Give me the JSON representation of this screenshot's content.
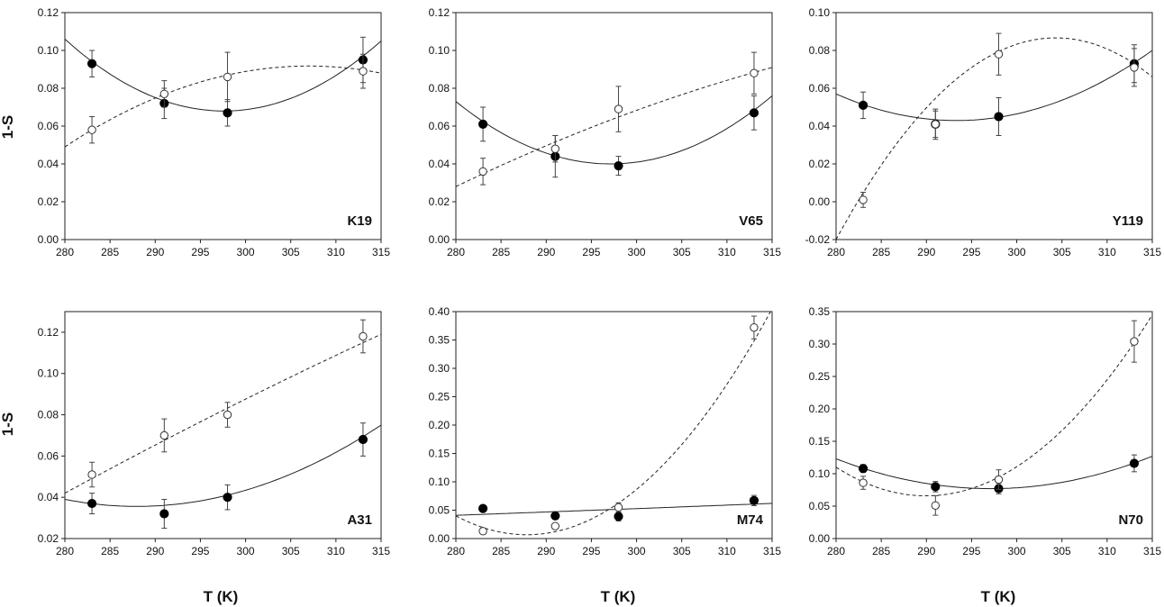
{
  "figure": {
    "ylabel": "1-S",
    "xlabel": "T (K)"
  },
  "chart_data": [
    {
      "type": "scatter",
      "panel_label": "K19",
      "xlim": [
        280,
        315
      ],
      "ylim": [
        0,
        0.12
      ],
      "xticks": [
        "280",
        "285",
        "290",
        "295",
        "300",
        "305",
        "310",
        "315"
      ],
      "yticks": [
        "0.00",
        "0.02",
        "0.04",
        "0.06",
        "0.08",
        "0.10",
        "0.12"
      ],
      "series": [
        {
          "marker": "filled",
          "x": [
            283,
            291,
            298,
            313
          ],
          "y": [
            0.093,
            0.072,
            0.067,
            0.095
          ],
          "err": [
            0.007,
            0.008,
            0.007,
            0.012
          ],
          "fit": {
            "style": "solid",
            "x": [
              280,
              298,
              315
            ],
            "y": [
              0.106,
              0.068,
              0.105
            ]
          }
        },
        {
          "marker": "open",
          "x": [
            283,
            291,
            298,
            313
          ],
          "y": [
            0.058,
            0.077,
            0.086,
            0.089
          ],
          "err": [
            0.007,
            0.007,
            0.013,
            0.009
          ],
          "fit": {
            "style": "dashed",
            "x": [
              280,
              298,
              315
            ],
            "y": [
              0.049,
              0.087,
              0.088
            ]
          }
        }
      ]
    },
    {
      "type": "scatter",
      "panel_label": "V65",
      "xlim": [
        280,
        315
      ],
      "ylim": [
        0,
        0.12
      ],
      "xticks": [
        "280",
        "285",
        "290",
        "295",
        "300",
        "305",
        "310",
        "315"
      ],
      "yticks": [
        "0.00",
        "0.02",
        "0.04",
        "0.06",
        "0.08",
        "0.10",
        "0.12"
      ],
      "series": [
        {
          "marker": "filled",
          "x": [
            283,
            291,
            298,
            313
          ],
          "y": [
            0.061,
            0.044,
            0.039,
            0.067
          ],
          "err": [
            0.009,
            0.011,
            0.005,
            0.009
          ],
          "fit": {
            "style": "solid",
            "x": [
              280,
              297,
              315
            ],
            "y": [
              0.073,
              0.04,
              0.076
            ]
          }
        },
        {
          "marker": "open",
          "x": [
            283,
            291,
            298,
            313
          ],
          "y": [
            0.036,
            0.048,
            0.069,
            0.088
          ],
          "err": [
            0.007,
            0.007,
            0.012,
            0.011
          ],
          "fit": {
            "style": "dashed",
            "x": [
              280,
              297,
              315
            ],
            "y": [
              0.028,
              0.063,
              0.091
            ]
          }
        }
      ]
    },
    {
      "type": "scatter",
      "panel_label": "Y119",
      "xlim": [
        280,
        315
      ],
      "ylim": [
        -0.02,
        0.1
      ],
      "xticks": [
        "280",
        "285",
        "290",
        "295",
        "300",
        "305",
        "310",
        "315"
      ],
      "yticks": [
        "-0.02",
        "0.00",
        "0.02",
        "0.04",
        "0.06",
        "0.08",
        "0.10"
      ],
      "series": [
        {
          "marker": "filled",
          "x": [
            283,
            291,
            298,
            313
          ],
          "y": [
            0.051,
            0.041,
            0.045,
            0.073
          ],
          "err": [
            0.007,
            0.007,
            0.01,
            0.01
          ],
          "fit": {
            "style": "solid",
            "x": [
              280,
              297,
              315
            ],
            "y": [
              0.057,
              0.044,
              0.08
            ]
          }
        },
        {
          "marker": "open",
          "x": [
            283,
            291,
            298,
            313
          ],
          "y": [
            0.001,
            0.041,
            0.078,
            0.071
          ],
          "err": [
            0.004,
            0.008,
            0.011,
            0.01
          ],
          "fit": {
            "style": "dashed",
            "x": [
              280,
              297,
              315
            ],
            "y": [
              -0.02,
              0.077,
              0.066
            ]
          }
        }
      ]
    },
    {
      "type": "scatter",
      "panel_label": "A31",
      "xlim": [
        280,
        315
      ],
      "ylim": [
        0.02,
        0.13
      ],
      "xticks": [
        "280",
        "285",
        "290",
        "295",
        "300",
        "305",
        "310",
        "315"
      ],
      "yticks": [
        "0.02",
        "0.04",
        "0.06",
        "0.08",
        "0.10",
        "0.12"
      ],
      "series": [
        {
          "marker": "filled",
          "x": [
            283,
            291,
            298,
            313
          ],
          "y": [
            0.037,
            0.032,
            0.04,
            0.068
          ],
          "err": [
            0.005,
            0.007,
            0.006,
            0.008
          ],
          "fit": {
            "style": "solid",
            "x": [
              280,
              297,
              315
            ],
            "y": [
              0.039,
              0.04,
              0.075
            ]
          }
        },
        {
          "marker": "open",
          "x": [
            283,
            291,
            298,
            313
          ],
          "y": [
            0.051,
            0.07,
            0.08,
            0.118
          ],
          "err": [
            0.006,
            0.008,
            0.006,
            0.008
          ],
          "fit": {
            "style": "dashed",
            "x": [
              280,
              297,
              315
            ],
            "y": [
              0.042,
              0.081,
              0.119
            ]
          }
        }
      ]
    },
    {
      "type": "scatter",
      "panel_label": "M74",
      "xlim": [
        280,
        315
      ],
      "ylim": [
        0,
        0.4
      ],
      "xticks": [
        "280",
        "285",
        "290",
        "295",
        "300",
        "305",
        "310",
        "315"
      ],
      "yticks": [
        "0.00",
        "0.05",
        "0.10",
        "0.15",
        "0.20",
        "0.25",
        "0.30",
        "0.35",
        "0.40"
      ],
      "series": [
        {
          "marker": "filled",
          "x": [
            283,
            291,
            298,
            313
          ],
          "y": [
            0.053,
            0.04,
            0.039,
            0.067
          ],
          "err": [
            0.005,
            0.006,
            0.008,
            0.009
          ],
          "fit": {
            "style": "solid",
            "x": [
              280,
              297,
              315
            ],
            "y": [
              0.041,
              0.051,
              0.062
            ]
          }
        },
        {
          "marker": "open",
          "x": [
            283,
            291,
            298,
            313
          ],
          "y": [
            0.013,
            0.022,
            0.055,
            0.372
          ],
          "err": [
            0.004,
            0.005,
            0.008,
            0.02
          ],
          "fit": {
            "style": "dashed",
            "x": [
              280,
              297,
              315
            ],
            "y": [
              0.04,
              0.052,
              0.405
            ]
          }
        }
      ]
    },
    {
      "type": "scatter",
      "panel_label": "N70",
      "xlim": [
        280,
        315
      ],
      "ylim": [
        0,
        0.35
      ],
      "xticks": [
        "280",
        "285",
        "290",
        "295",
        "300",
        "305",
        "310",
        "315"
      ],
      "yticks": [
        "0.00",
        "0.05",
        "0.10",
        "0.15",
        "0.20",
        "0.25",
        "0.30",
        "0.35"
      ],
      "series": [
        {
          "marker": "filled",
          "x": [
            283,
            291,
            298,
            313
          ],
          "y": [
            0.108,
            0.08,
            0.077,
            0.116
          ],
          "err": [
            0.006,
            0.008,
            0.008,
            0.013
          ],
          "fit": {
            "style": "solid",
            "x": [
              280,
              297,
              315
            ],
            "y": [
              0.123,
              0.077,
              0.127
            ]
          }
        },
        {
          "marker": "open",
          "x": [
            283,
            291,
            298,
            313
          ],
          "y": [
            0.086,
            0.051,
            0.091,
            0.304
          ],
          "err": [
            0.01,
            0.015,
            0.015,
            0.032
          ],
          "fit": {
            "style": "dashed",
            "x": [
              280,
              297,
              315
            ],
            "y": [
              0.11,
              0.088,
              0.345
            ]
          }
        }
      ]
    }
  ]
}
